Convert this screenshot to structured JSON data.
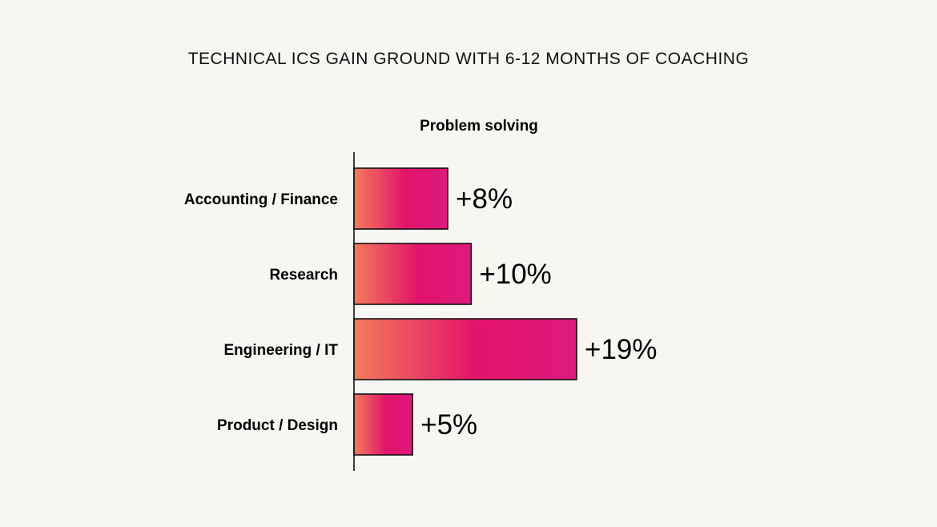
{
  "chart_data": {
    "type": "bar",
    "orientation": "horizontal",
    "title": "TECHNICAL ICS GAIN GROUND WITH 6-12 MONTHS OF COACHING",
    "subtitle": "Problem solving",
    "categories": [
      "Accounting / Finance",
      "Research",
      "Engineering / IT",
      "Product / Design"
    ],
    "values": [
      8,
      10,
      19,
      5
    ],
    "value_labels": [
      "+8%",
      "+10%",
      "+19%",
      "+5%"
    ],
    "unit": "%",
    "xlim": [
      0,
      19
    ],
    "grid": false,
    "legend": "none",
    "colors": {
      "bar_gradient_start": "#f47a5a",
      "bar_gradient_mid": "#e2136b",
      "bar_gradient_end": "#dd1a7e",
      "bar_stroke": "#111111",
      "axis": "#111111",
      "background": "#f8f6f2"
    }
  }
}
